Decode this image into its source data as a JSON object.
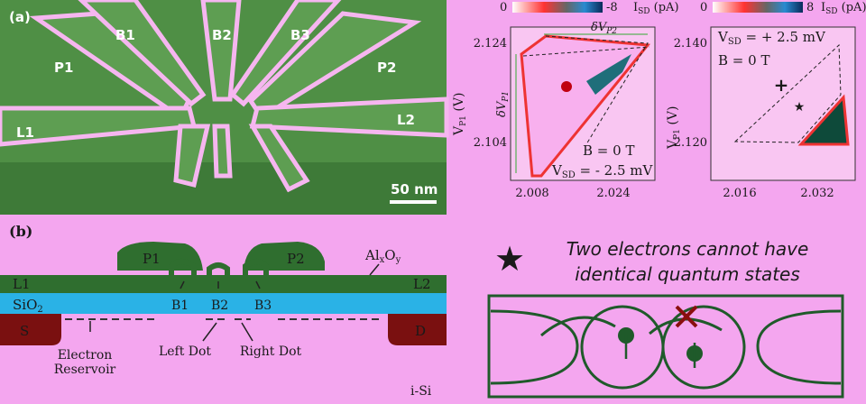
{
  "panel_a": {
    "label": "(a)",
    "gates": [
      "B1",
      "B2",
      "B3",
      "P1",
      "P2",
      "L1",
      "L2"
    ],
    "scale_bar": "50 nm"
  },
  "map_left": {
    "cbar_min": "0",
    "cbar_max": "-8",
    "cbar_unit": {
      "main": "I",
      "sub": "SD",
      "rest": " (pA)"
    },
    "ylabel": {
      "main": "V",
      "sub": "P1",
      "rest": " (V)"
    },
    "yticks": [
      "2.124",
      "2.104"
    ],
    "xticks": [
      "2.008",
      "2.024"
    ],
    "dvp2": {
      "main": "δV",
      "sub": "P2"
    },
    "dvp1": {
      "main": "δV",
      "sub": "P1"
    },
    "field": "B = 0 T",
    "bias": {
      "main": "V",
      "sub": "SD",
      "rest": " = - 2.5 mV"
    }
  },
  "map_right": {
    "cbar_min": "0",
    "cbar_max": "8",
    "cbar_unit": {
      "main": "I",
      "sub": "SD",
      "rest": " (pA)"
    },
    "ylabel": {
      "main": "V",
      "sub": "P1",
      "rest": " (V)"
    },
    "yticks": [
      "2.140",
      "2.120"
    ],
    "xticks": [
      "2.016",
      "2.032"
    ],
    "bias": {
      "main": "V",
      "sub": "SD",
      "rest": " = + 2.5 mV"
    },
    "field": "B = 0 T"
  },
  "panel_b": {
    "label": "(b)",
    "p1": "P1",
    "p2": "P2",
    "oxide": {
      "main": "Al",
      "sub1": "x",
      "mid": "O",
      "sub2": "y"
    },
    "l1": "L1",
    "l2": "L2",
    "sio2": {
      "main": "SiO",
      "sub": "2"
    },
    "b1": "B1",
    "b2": "B2",
    "b3": "B3",
    "source": "S",
    "drain": "D",
    "reservoir": [
      "Electron",
      "Reservoir"
    ],
    "left_dot": "Left Dot",
    "right_dot": "Right Dot",
    "substrate": "i-Si"
  },
  "pauli": {
    "line1": "Two electrons cannot have",
    "line2": "identical quantum states"
  }
}
